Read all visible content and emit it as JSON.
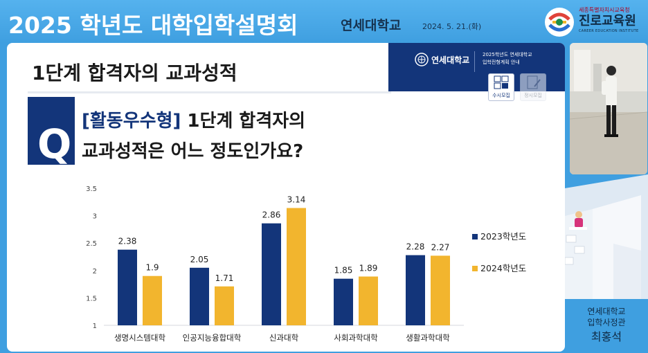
{
  "header": {
    "event_title": "2025 학년도 대학입학설명회",
    "host": "연세대학교",
    "date": "2024. 5. 21.(화)",
    "org_parent": "세종특별자치시교육청",
    "org_name": "진로교육원",
    "org_eng": "CAREER EDUCATION INSTITUTE"
  },
  "slide": {
    "title": "1단계 합격자의 교과성적",
    "brand_name": "연세대학교",
    "brand_sub1": "2025학년도 연세대학교",
    "brand_sub2": "입학전형계획 안내",
    "icon_susi_label": "수시모집",
    "icon_jeongsi_label": "정시모집",
    "q_letter": "Q",
    "question_tag": "[활동우수형]",
    "question_rest": " 1단계 합격자의",
    "question_line2": "교과성적은 어느 정도인가요?"
  },
  "chart_data": {
    "type": "bar",
    "categories": [
      "생명시스템대학",
      "인공지능융합대학",
      "신과대학",
      "사회과학대학",
      "생활과학대학"
    ],
    "series": [
      {
        "name": "2023학년도",
        "values": [
          2.38,
          2.05,
          2.86,
          1.85,
          2.28
        ],
        "color": "#13357a"
      },
      {
        "name": "2024학년도",
        "values": [
          1.9,
          1.71,
          3.14,
          1.89,
          2.27
        ],
        "color": "#f2b52e"
      }
    ],
    "yticks": [
      "1",
      "1.5",
      "2",
      "2.5",
      "3",
      "3.5"
    ],
    "ylim": [
      1,
      3.5
    ],
    "grid": false,
    "legend_position": "right"
  },
  "speaker": {
    "org": "연세대학교",
    "role": "입학사정관",
    "name": "최홍석"
  },
  "colors": {
    "banner": "#3f9fe0",
    "navy": "#13357a",
    "gold": "#f2b52e"
  }
}
